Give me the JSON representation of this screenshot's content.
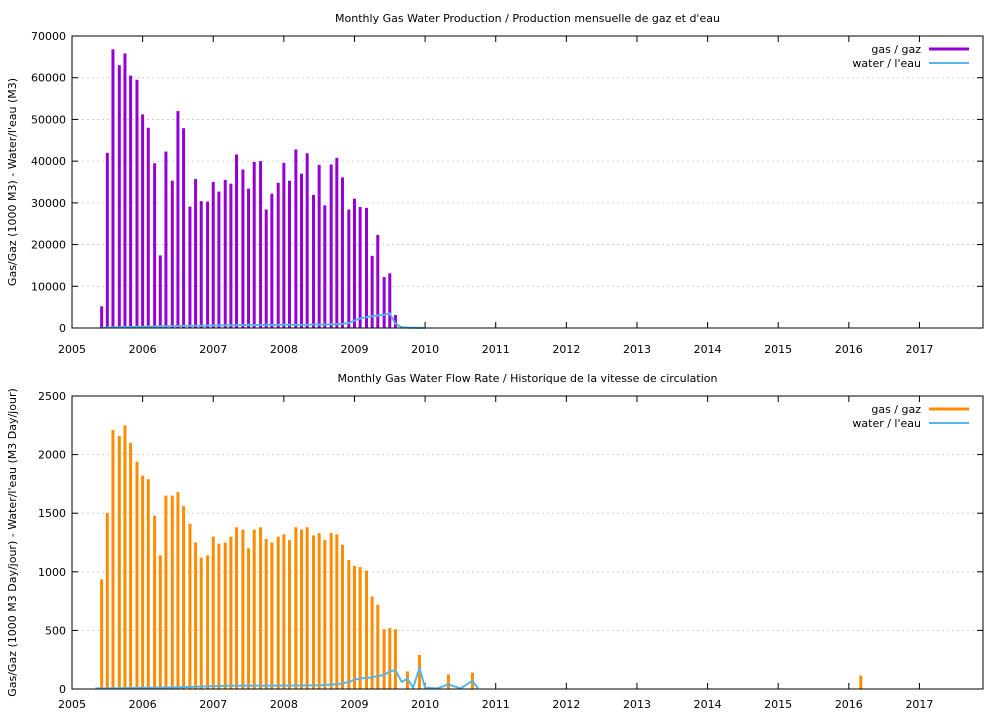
{
  "chart_data": [
    {
      "type": "bar",
      "title": "Monthly Gas  Water Production / Production mensuelle de gaz et d'eau",
      "ylabel": "Gas/Gaz (1000 M3) - Water/l'eau (M3)",
      "xlabel": "",
      "xlim": [
        2005.0,
        2017.9
      ],
      "ylim": [
        0,
        70000
      ],
      "yticks": [
        "0",
        "10000",
        "20000",
        "30000",
        "40000",
        "50000",
        "60000",
        "70000"
      ],
      "xticks": [
        "2005",
        "2006",
        "2007",
        "2008",
        "2009",
        "2010",
        "2011",
        "2012",
        "2013",
        "2014",
        "2015",
        "2016",
        "2017"
      ],
      "grid": true,
      "legend_position": "top-right",
      "colors": {
        "gas": "#9400d3",
        "water": "#56b4e9"
      },
      "series": [
        {
          "name": "gas / gaz",
          "style": "bars",
          "x": [
            2005.42,
            2005.5,
            2005.58,
            2005.67,
            2005.75,
            2005.83,
            2005.92,
            2006.0,
            2006.08,
            2006.17,
            2006.25,
            2006.33,
            2006.42,
            2006.5,
            2006.58,
            2006.67,
            2006.75,
            2006.83,
            2006.92,
            2007.0,
            2007.08,
            2007.17,
            2007.25,
            2007.33,
            2007.42,
            2007.5,
            2007.58,
            2007.67,
            2007.75,
            2007.83,
            2007.92,
            2008.0,
            2008.08,
            2008.17,
            2008.25,
            2008.33,
            2008.42,
            2008.5,
            2008.58,
            2008.67,
            2008.75,
            2008.83,
            2008.92,
            2009.0,
            2009.08,
            2009.17,
            2009.25,
            2009.33,
            2009.42,
            2009.5,
            2009.58
          ],
          "y": [
            5200,
            42000,
            66800,
            63000,
            65800,
            60500,
            59500,
            51200,
            48000,
            39500,
            17400,
            42300,
            35300,
            52000,
            47900,
            29100,
            35700,
            30400,
            30300,
            35000,
            32700,
            35500,
            34600,
            41600,
            38000,
            33400,
            39800,
            40000,
            28400,
            32200,
            34800,
            39600,
            35300,
            42800,
            37000,
            41900,
            31900,
            39100,
            29400,
            39200,
            40800,
            36100,
            28400,
            31000,
            29000,
            28800,
            17300,
            22300,
            12200,
            13100,
            3100
          ]
        },
        {
          "name": "water / l'eau",
          "style": "line",
          "x": [
            2005.42,
            2005.5,
            2005.58,
            2005.67,
            2005.75,
            2005.83,
            2005.92,
            2006.0,
            2006.08,
            2006.17,
            2006.25,
            2006.33,
            2006.42,
            2006.5,
            2006.58,
            2006.67,
            2006.75,
            2006.83,
            2006.92,
            2007.0,
            2007.08,
            2007.17,
            2007.25,
            2007.33,
            2007.42,
            2007.5,
            2007.58,
            2007.67,
            2007.75,
            2007.83,
            2007.92,
            2008.0,
            2008.08,
            2008.17,
            2008.25,
            2008.33,
            2008.42,
            2008.5,
            2008.58,
            2008.67,
            2008.75,
            2008.83,
            2008.92,
            2009.0,
            2009.08,
            2009.17,
            2009.25,
            2009.33,
            2009.42,
            2009.5,
            2009.58,
            2009.67,
            2009.75,
            2009.83,
            2009.92,
            2010.0
          ],
          "y": [
            100,
            150,
            200,
            200,
            250,
            250,
            300,
            300,
            350,
            350,
            400,
            400,
            450,
            450,
            500,
            500,
            550,
            550,
            600,
            600,
            600,
            650,
            650,
            700,
            700,
            700,
            700,
            750,
            750,
            750,
            750,
            800,
            800,
            800,
            800,
            800,
            850,
            850,
            850,
            900,
            900,
            1000,
            1200,
            1800,
            2300,
            2600,
            2800,
            3000,
            3200,
            3500,
            1000,
            200,
            100,
            50,
            30,
            0
          ]
        }
      ]
    },
    {
      "type": "bar",
      "title": "Monthly Gas  Water Flow Rate / Historique de la vitesse de circulation",
      "ylabel": "Gas/Gaz (1000 M3 Day/jour) - Water/l'eau (M3 Day/jour)",
      "xlabel": "",
      "xlim": [
        2005.0,
        2017.9
      ],
      "ylim": [
        0,
        2500
      ],
      "yticks": [
        "0",
        "500",
        "1000",
        "1500",
        "2000",
        "2500"
      ],
      "xticks": [
        "2005",
        "2006",
        "2007",
        "2008",
        "2009",
        "2010",
        "2011",
        "2012",
        "2013",
        "2014",
        "2015",
        "2016",
        "2017"
      ],
      "grid": true,
      "legend_position": "top-right",
      "colors": {
        "gas": "#ff8c00",
        "water": "#56b4e9"
      },
      "series": [
        {
          "name": "gas / gaz",
          "style": "bars",
          "x": [
            2005.42,
            2005.5,
            2005.58,
            2005.67,
            2005.75,
            2005.83,
            2005.92,
            2006.0,
            2006.08,
            2006.17,
            2006.25,
            2006.33,
            2006.42,
            2006.5,
            2006.58,
            2006.67,
            2006.75,
            2006.83,
            2006.92,
            2007.0,
            2007.08,
            2007.17,
            2007.25,
            2007.33,
            2007.42,
            2007.5,
            2007.58,
            2007.67,
            2007.75,
            2007.83,
            2007.92,
            2008.0,
            2008.08,
            2008.17,
            2008.25,
            2008.33,
            2008.42,
            2008.5,
            2008.58,
            2008.67,
            2008.75,
            2008.83,
            2008.92,
            2009.0,
            2009.08,
            2009.17,
            2009.25,
            2009.33,
            2009.42,
            2009.5,
            2009.58,
            2009.75,
            2009.92,
            2010.33,
            2010.67,
            2016.17
          ],
          "y": [
            935,
            1500,
            2210,
            2160,
            2250,
            2100,
            1940,
            1820,
            1790,
            1480,
            1140,
            1650,
            1650,
            1680,
            1560,
            1410,
            1250,
            1120,
            1140,
            1300,
            1240,
            1250,
            1300,
            1380,
            1360,
            1200,
            1360,
            1380,
            1280,
            1250,
            1300,
            1320,
            1270,
            1380,
            1360,
            1380,
            1310,
            1330,
            1270,
            1330,
            1320,
            1230,
            1100,
            1050,
            1040,
            1010,
            790,
            720,
            510,
            520,
            510,
            150,
            290,
            125,
            140,
            115
          ]
        },
        {
          "name": "water / l'eau",
          "style": "line",
          "x": [
            2005.33,
            2005.5,
            2005.75,
            2006.0,
            2006.25,
            2006.5,
            2006.75,
            2007.0,
            2007.25,
            2007.5,
            2007.75,
            2008.0,
            2008.25,
            2008.5,
            2008.75,
            2008.92,
            2009.0,
            2009.08,
            2009.17,
            2009.25,
            2009.33,
            2009.42,
            2009.5,
            2009.58,
            2009.67,
            2009.75,
            2009.83,
            2009.92,
            2010.0,
            2010.17,
            2010.33,
            2010.5,
            2010.67,
            2010.75
          ],
          "y": [
            5,
            5,
            8,
            10,
            12,
            15,
            20,
            25,
            28,
            30,
            28,
            30,
            30,
            32,
            40,
            60,
            80,
            90,
            95,
            100,
            110,
            120,
            150,
            160,
            60,
            90,
            10,
            180,
            10,
            5,
            40,
            5,
            70,
            5
          ]
        }
      ]
    }
  ]
}
